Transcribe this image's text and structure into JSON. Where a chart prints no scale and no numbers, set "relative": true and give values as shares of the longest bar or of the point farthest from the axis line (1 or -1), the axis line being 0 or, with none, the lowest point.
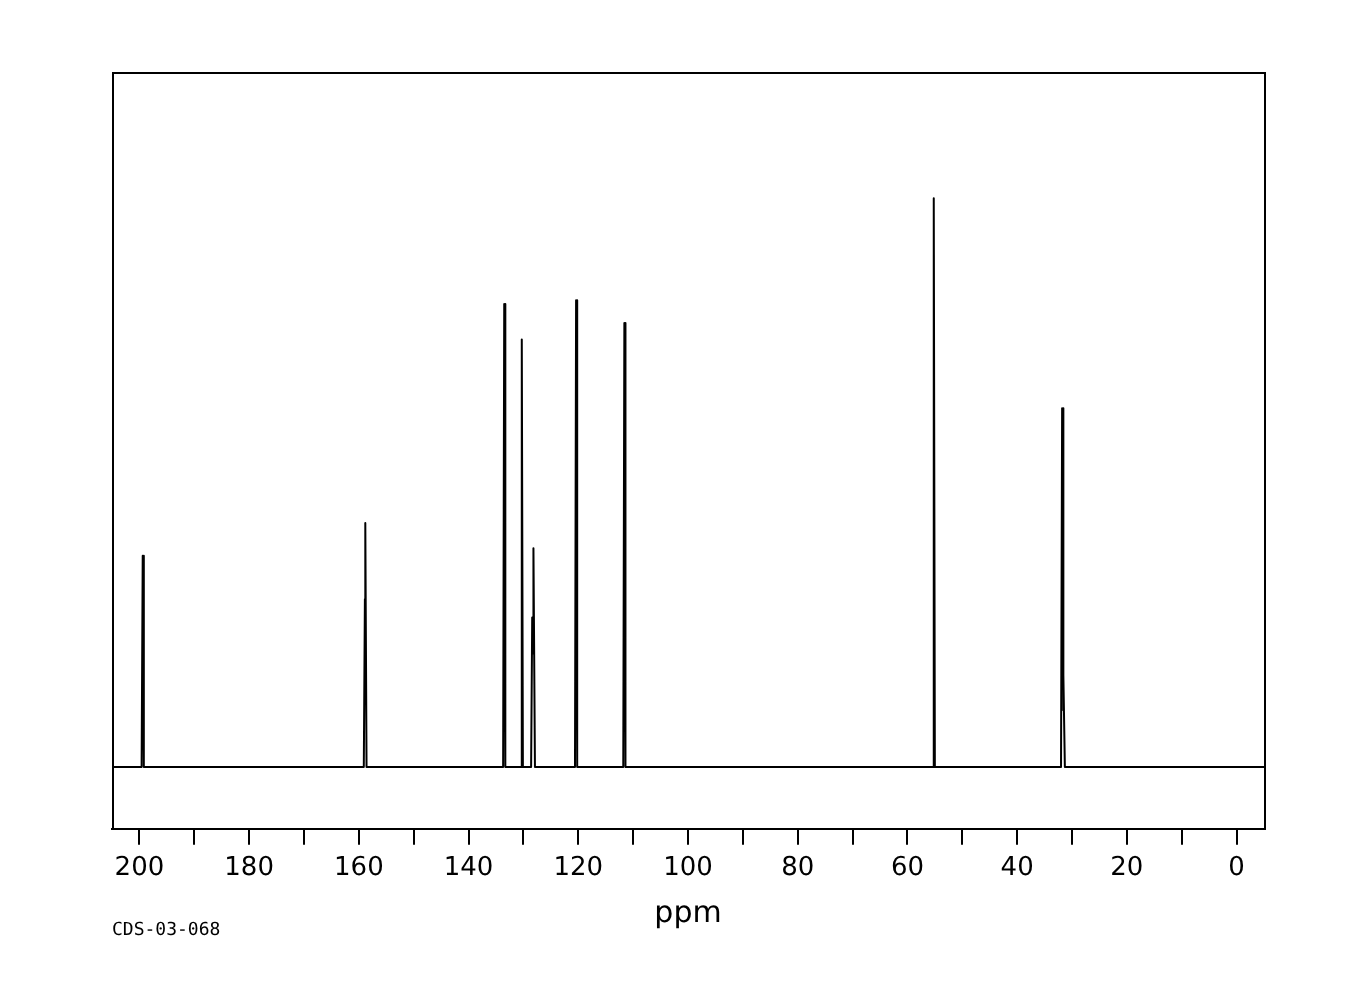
{
  "chart_data": {
    "type": "line",
    "relative": true,
    "xlabel": "ppm",
    "annotations": [
      "CDS-03-068"
    ],
    "x": [
      205,
      199.6,
      199.4,
      199.2,
      159.1,
      158.9,
      158.85,
      158.8,
      158.6,
      133.7,
      133.5,
      133.3,
      130.5,
      130.3,
      130.1,
      128.6,
      128.4,
      128.25,
      128.1,
      127.9,
      120.6,
      120.4,
      120.2,
      111.8,
      111.6,
      111.4,
      55.4,
      55.2,
      55.0,
      32.0,
      31.8,
      31.65,
      31.5,
      31.3,
      -5
    ],
    "series": [
      {
        "color": "#000000",
        "values": [
          0.098,
          0.098,
          0.433,
          0.098,
          0.098,
          0.364,
          0.278,
          0.485,
          0.098,
          0.098,
          0.832,
          0.098,
          0.098,
          0.776,
          0.098,
          0.098,
          0.335,
          0.278,
          0.445,
          0.098,
          0.098,
          0.838,
          0.098,
          0.098,
          0.802,
          0.098,
          0.098,
          1,
          0.098,
          0.098,
          0.667,
          0.188,
          0.244,
          0.098,
          0.098
        ]
      }
    ],
    "xlim": [
      205,
      -5
    ],
    "xticks": [
      0,
      {
        "value": 10,
        "label": null
      },
      20,
      {
        "value": 30,
        "label": null
      },
      40,
      {
        "value": 50,
        "label": null
      },
      60,
      {
        "value": 70,
        "label": null
      },
      80,
      {
        "value": 90,
        "label": null
      },
      100,
      {
        "value": 110,
        "label": null
      },
      120,
      {
        "value": 130,
        "label": null
      },
      140,
      {
        "value": 150,
        "label": null
      },
      160,
      {
        "value": 170,
        "label": null
      },
      180,
      {
        "value": 190,
        "label": null
      },
      200
    ],
    "grid": false,
    "legend": false,
    "marker": "none",
    "line_style": "solid"
  }
}
